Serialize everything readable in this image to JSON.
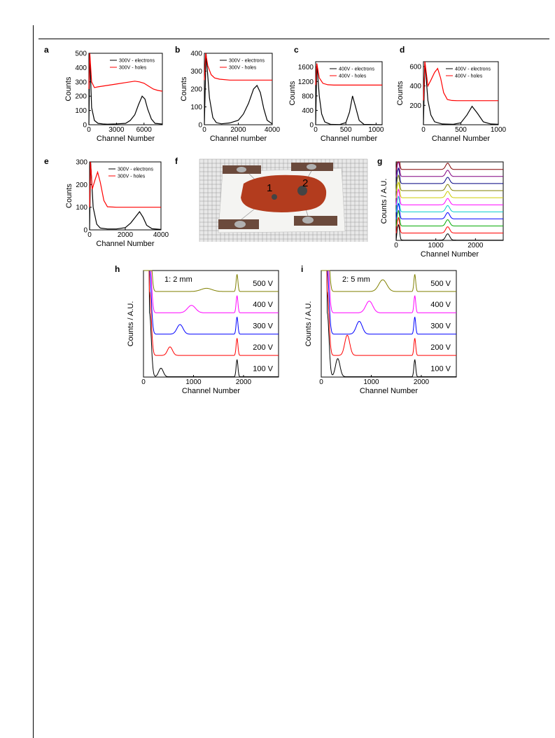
{
  "chart_data": [
    {
      "panel": "a",
      "type": "line",
      "xlabel": "Channel Number",
      "ylabel": "Counts",
      "xlim": [
        0,
        8000
      ],
      "ylim": [
        0,
        500
      ],
      "xticks": [
        "0",
        "3000",
        "6000"
      ],
      "yticks": [
        "0",
        "100",
        "200",
        "300",
        "400",
        "500"
      ],
      "legend": "top-right",
      "series": [
        {
          "name": "300V - electrons",
          "color": "#000000",
          "x": [
            0,
            100,
            300,
            600,
            1000,
            1500,
            2000,
            3000,
            4000,
            4500,
            5000,
            5400,
            5800,
            6100,
            6400,
            6800,
            7200,
            8000
          ],
          "y": [
            0,
            500,
            120,
            30,
            10,
            6,
            4,
            6,
            10,
            30,
            70,
            140,
            200,
            180,
            110,
            40,
            10,
            5
          ]
        },
        {
          "name": "300V - holes",
          "color": "#ff0000",
          "x": [
            0,
            100,
            300,
            600,
            1000,
            2000,
            3000,
            4000,
            5000,
            5500,
            6000,
            6500,
            7000,
            7500,
            8000
          ],
          "y": [
            250,
            500,
            300,
            260,
            265,
            275,
            285,
            295,
            305,
            300,
            290,
            270,
            250,
            240,
            235
          ]
        }
      ]
    },
    {
      "panel": "b",
      "type": "line",
      "xlabel": "Channel number",
      "ylabel": "Counts",
      "xlim": [
        0,
        4000
      ],
      "ylim": [
        0,
        400
      ],
      "xticks": [
        "0",
        "2000",
        "4000"
      ],
      "yticks": [
        "0",
        "100",
        "200",
        "300",
        "400"
      ],
      "legend": "top-right",
      "series": [
        {
          "name": "300V - electrons",
          "color": "#000000",
          "x": [
            0,
            100,
            300,
            500,
            700,
            1000,
            1500,
            2000,
            2300,
            2600,
            2900,
            3100,
            3300,
            3500,
            3700,
            4000
          ],
          "y": [
            0,
            400,
            150,
            40,
            12,
            5,
            10,
            25,
            60,
            120,
            200,
            220,
            180,
            90,
            25,
            5
          ]
        },
        {
          "name": "300V - holes",
          "color": "#ff0000",
          "x": [
            0,
            80,
            200,
            400,
            600,
            900,
            1500,
            4000
          ],
          "y": [
            250,
            400,
            330,
            280,
            262,
            255,
            250,
            250
          ]
        }
      ]
    },
    {
      "panel": "c",
      "type": "line",
      "xlabel": "Channel number",
      "ylabel": "Counts",
      "xlim": [
        0,
        1100
      ],
      "ylim": [
        0,
        1750
      ],
      "xticks": [
        "0",
        "500",
        "1000"
      ],
      "yticks": [
        "0",
        "400",
        "800",
        "1200",
        "1600"
      ],
      "legend": "top-right",
      "series": [
        {
          "name": "400V - electrons",
          "color": "#000000",
          "x": [
            0,
            20,
            60,
            100,
            150,
            250,
            400,
            500,
            560,
            610,
            660,
            720,
            800,
            1100
          ],
          "y": [
            0,
            1700,
            800,
            300,
            80,
            10,
            5,
            60,
            350,
            800,
            500,
            120,
            10,
            0
          ]
        },
        {
          "name": "400V - holes",
          "color": "#ff0000",
          "x": [
            0,
            20,
            60,
            120,
            200,
            300,
            1100
          ],
          "y": [
            1100,
            1700,
            1300,
            1150,
            1110,
            1100,
            1100
          ]
        }
      ]
    },
    {
      "panel": "d",
      "type": "line",
      "xlabel": "Channel Number",
      "ylabel": "Counts",
      "xlim": [
        0,
        1000
      ],
      "ylim": [
        0,
        650
      ],
      "xticks": [
        "0",
        "500",
        "1000"
      ],
      "yticks": [
        "200",
        "400",
        "600"
      ],
      "legend": "top-right",
      "series": [
        {
          "name": "400V - electrons",
          "color": "#000000",
          "x": [
            0,
            20,
            60,
            100,
            150,
            250,
            400,
            500,
            580,
            650,
            720,
            800,
            900,
            1000
          ],
          "y": [
            0,
            650,
            250,
            100,
            30,
            8,
            5,
            20,
            100,
            190,
            120,
            30,
            8,
            5
          ]
        },
        {
          "name": "400V - holes",
          "color": "#ff0000",
          "x": [
            0,
            20,
            60,
            100,
            150,
            190,
            230,
            270,
            320,
            380,
            450,
            1000
          ],
          "y": [
            250,
            650,
            400,
            460,
            540,
            580,
            480,
            330,
            260,
            250,
            248,
            248
          ]
        }
      ]
    },
    {
      "panel": "e",
      "type": "line",
      "xlabel": "Channel Number",
      "ylabel": "Counts",
      "xlim": [
        0,
        4000
      ],
      "ylim": [
        0,
        300
      ],
      "xticks": [
        "0",
        "2000",
        "4000"
      ],
      "yticks": [
        "0",
        "100",
        "200",
        "300"
      ],
      "legend": "top-right",
      "series": [
        {
          "name": "300V - electrons",
          "color": "#000000",
          "x": [
            0,
            60,
            200,
            400,
            600,
            1000,
            1500,
            2000,
            2300,
            2600,
            2800,
            3000,
            3200,
            3500,
            4000
          ],
          "y": [
            0,
            300,
            100,
            25,
            8,
            4,
            4,
            10,
            30,
            60,
            80,
            55,
            20,
            5,
            2
          ]
        },
        {
          "name": "300V - holes",
          "color": "#ff0000",
          "x": [
            0,
            50,
            150,
            300,
            450,
            600,
            800,
            1000,
            1500,
            4000
          ],
          "y": [
            100,
            300,
            180,
            220,
            255,
            210,
            130,
            102,
            100,
            100
          ]
        }
      ]
    },
    {
      "panel": "g",
      "type": "line",
      "xlabel": "Channel Number",
      "ylabel": "Counts / A.U.",
      "xlim": [
        0,
        2700
      ],
      "ylim": [
        0,
        100
      ],
      "xticks": [
        "0",
        "1000",
        "2000"
      ],
      "peak_channel": 1300,
      "series": [
        {
          "color": "#000000",
          "offset": 0
        },
        {
          "color": "#ff0000",
          "offset": 9
        },
        {
          "color": "#00aa00",
          "offset": 18
        },
        {
          "color": "#0000ff",
          "offset": 27
        },
        {
          "color": "#00cccc",
          "offset": 36
        },
        {
          "color": "#ff00ff",
          "offset": 45
        },
        {
          "color": "#cccc00",
          "offset": 54
        },
        {
          "color": "#808000",
          "offset": 63
        },
        {
          "color": "#000080",
          "offset": 72
        },
        {
          "color": "#800080",
          "offset": 81
        },
        {
          "color": "#800000",
          "offset": 90
        }
      ]
    },
    {
      "panel": "h",
      "type": "line",
      "annotation": "1: 2 mm",
      "xlabel": "Channel Number",
      "ylabel": "Counts / A.U.",
      "xlim": [
        0,
        2700
      ],
      "ylim": [
        0,
        100
      ],
      "xticks": [
        "0",
        "1000",
        "2000"
      ],
      "alpha_peak": 1870,
      "series": [
        {
          "name": "100 V",
          "color": "#000000",
          "offset": 0,
          "peak": 350,
          "height": 8,
          "width": 45
        },
        {
          "name": "200 V",
          "color": "#ff0000",
          "offset": 20,
          "peak": 530,
          "height": 8,
          "width": 50
        },
        {
          "name": "300 V",
          "color": "#0000ff",
          "offset": 40,
          "peak": 730,
          "height": 9,
          "width": 60
        },
        {
          "name": "400 V",
          "color": "#ff00ff",
          "offset": 60,
          "peak": 960,
          "height": 7,
          "width": 80
        },
        {
          "name": "500 V",
          "color": "#808000",
          "offset": 80,
          "peak": 1260,
          "height": 3,
          "width": 110
        }
      ]
    },
    {
      "panel": "i",
      "type": "line",
      "annotation": "2: 5 mm",
      "xlabel": "Channel Number",
      "ylabel": "Counts / A.U.",
      "xlim": [
        0,
        2700
      ],
      "ylim": [
        0,
        100
      ],
      "xticks": [
        "0",
        "1000",
        "2000"
      ],
      "alpha_peak": 1870,
      "series": [
        {
          "name": "100 V",
          "color": "#000000",
          "offset": 0,
          "peak": 330,
          "height": 17,
          "width": 45
        },
        {
          "name": "200 V",
          "color": "#ff0000",
          "offset": 20,
          "peak": 520,
          "height": 19,
          "width": 50
        },
        {
          "name": "300 V",
          "color": "#0000ff",
          "offset": 40,
          "peak": 760,
          "height": 12,
          "width": 60
        },
        {
          "name": "400 V",
          "color": "#ff00ff",
          "offset": 60,
          "peak": 960,
          "height": 11,
          "width": 70
        },
        {
          "name": "500 V",
          "color": "#808000",
          "offset": 80,
          "peak": 1230,
          "height": 11,
          "width": 80
        }
      ]
    }
  ],
  "photo_f": {
    "panel": "f",
    "labels": [
      "1",
      "2"
    ],
    "colors": {
      "grid": "#888888",
      "backing": "#f4f4f2",
      "sample": "#b33c1e",
      "electrode": "#6b4a3c",
      "contact": "#444444"
    }
  }
}
